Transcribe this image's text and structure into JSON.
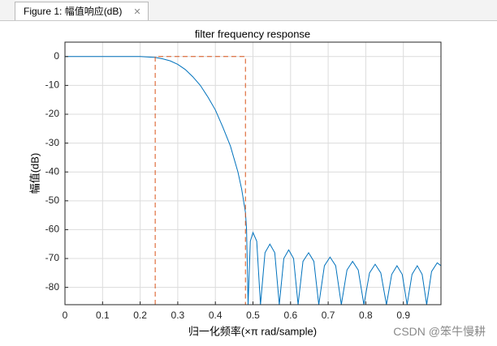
{
  "window": {
    "tab_title": "Figure 1: 幅值响应(dB)",
    "close": "✕"
  },
  "watermark": "CSDN @笨牛慢耕",
  "chart_data": {
    "type": "line",
    "title": "filter frequency response",
    "x_label": "归一化频率(×π rad/sample)",
    "y_label": "幅值(dB)",
    "xlim": [
      0,
      1
    ],
    "ylim": [
      -86,
      5
    ],
    "xticks": [
      0,
      0.1,
      0.2,
      0.3,
      0.4,
      0.5,
      0.6,
      0.7,
      0.8,
      0.9
    ],
    "yticks": [
      0,
      -10,
      -20,
      -30,
      -40,
      -50,
      -60,
      -70,
      -80
    ],
    "grid": true,
    "series": [
      {
        "color": "#0072bd",
        "dash": false,
        "x": [
          0,
          0.1,
          0.2,
          0.24,
          0.26,
          0.28,
          0.3,
          0.32,
          0.34,
          0.36,
          0.38,
          0.4,
          0.42,
          0.44,
          0.46,
          0.47,
          0.48,
          0.483,
          0.487,
          0.493,
          0.5,
          0.51,
          0.52,
          0.532,
          0.545,
          0.558,
          0.57,
          0.582,
          0.595,
          0.608,
          0.62,
          0.633,
          0.648,
          0.662,
          0.675,
          0.69,
          0.705,
          0.72,
          0.735,
          0.75,
          0.765,
          0.78,
          0.795,
          0.81,
          0.825,
          0.84,
          0.855,
          0.869,
          0.883,
          0.897,
          0.91,
          0.923,
          0.937,
          0.95,
          0.962,
          0.975,
          0.99,
          1.0
        ],
        "values": [
          0,
          0,
          0,
          -0.3,
          -0.8,
          -1.5,
          -2.7,
          -4.5,
          -7,
          -10,
          -14,
          -18.5,
          -24.5,
          -31,
          -40,
          -46,
          -54,
          -60,
          -86,
          -64,
          -61,
          -64,
          -86,
          -68,
          -65,
          -68,
          -86,
          -70,
          -67,
          -70,
          -86,
          -71,
          -68,
          -71,
          -86,
          -72.5,
          -69.5,
          -72.5,
          -86,
          -74,
          -71,
          -74,
          -86,
          -75,
          -72,
          -75,
          -86,
          -75.5,
          -72.5,
          -75.5,
          -86,
          -75.5,
          -72.5,
          -75.5,
          -86,
          -74.5,
          -71.5,
          -72.5
        ]
      },
      {
        "color": "#d95319",
        "dash": true,
        "x": [
          0.24,
          0.24,
          0.48,
          0.48
        ],
        "values": [
          -86,
          0,
          0,
          -86
        ]
      }
    ]
  }
}
